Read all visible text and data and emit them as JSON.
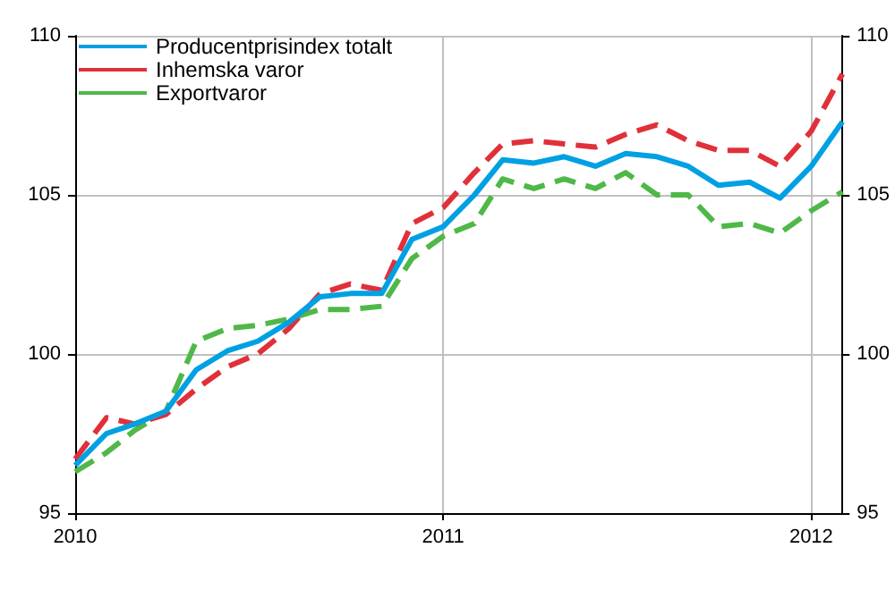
{
  "chart_data": {
    "type": "line",
    "x": [
      "2010-01",
      "2010-02",
      "2010-03",
      "2010-04",
      "2010-05",
      "2010-06",
      "2010-07",
      "2010-08",
      "2010-09",
      "2010-10",
      "2010-11",
      "2010-12",
      "2011-01",
      "2011-02",
      "2011-03",
      "2011-04",
      "2011-05",
      "2011-06",
      "2011-07",
      "2011-08",
      "2011-09",
      "2011-10",
      "2011-11",
      "2011-12",
      "2012-01",
      "2012-02"
    ],
    "series": [
      {
        "name": "Producentprisindex totalt",
        "color": "#00a0e3",
        "line_style": "solid",
        "values": [
          96.5,
          97.5,
          97.8,
          98.2,
          99.5,
          100.1,
          100.4,
          101.0,
          101.8,
          101.9,
          101.9,
          103.6,
          104.0,
          105.0,
          106.1,
          106.0,
          106.2,
          105.9,
          106.3,
          106.2,
          105.9,
          105.3,
          105.4,
          104.9,
          105.9,
          107.3
        ]
      },
      {
        "name": "Inhemska varor",
        "color": "#e0303a",
        "line_style": "dashed",
        "values": [
          96.7,
          98.0,
          97.8,
          98.1,
          98.9,
          99.6,
          100.0,
          100.8,
          101.9,
          102.2,
          102.0,
          104.1,
          104.6,
          105.7,
          106.6,
          106.7,
          106.6,
          106.5,
          106.9,
          107.2,
          106.7,
          106.4,
          106.4,
          105.9,
          107.0,
          108.8
        ]
      },
      {
        "name": "Exportvaror",
        "color": "#4fb848",
        "line_style": "dashed",
        "values": [
          96.3,
          96.9,
          97.6,
          98.2,
          100.4,
          100.8,
          100.9,
          101.1,
          101.4,
          101.4,
          101.5,
          103.0,
          103.7,
          104.1,
          105.5,
          105.2,
          105.5,
          105.2,
          105.7,
          105.0,
          105.0,
          104.0,
          104.1,
          103.8,
          104.5,
          105.1
        ]
      }
    ],
    "xlim": [
      "2010-01",
      "2012-02"
    ],
    "xticks": [
      "2010",
      "2011",
      "2012"
    ],
    "ylim": [
      95,
      110
    ],
    "yticks": [
      95,
      100,
      105,
      110
    ],
    "y2lim": [
      95,
      110
    ],
    "y2ticks": [
      95,
      100,
      105,
      110
    ],
    "grid": true,
    "legend": "top left",
    "marker": "none"
  }
}
